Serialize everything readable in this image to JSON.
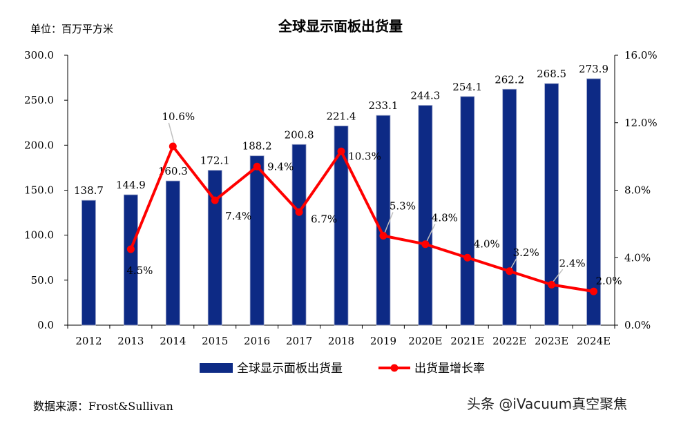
{
  "header": {
    "unit": "单位：百万平方米",
    "source": "数据来源：Frost&Sullivan",
    "watermark": "头条 @iVacuum真空聚焦"
  },
  "colors": {
    "bar": "#0d2a85",
    "line": "#ff0000",
    "axis": "#000000"
  },
  "chart_data": {
    "type": "bar",
    "title": "全球显示面板出货量",
    "categories": [
      "2012",
      "2013",
      "2014",
      "2015",
      "2016",
      "2017",
      "2018",
      "2019",
      "2020E",
      "2021E",
      "2022E",
      "2023E",
      "2024E"
    ],
    "series": [
      {
        "name": "全球显示面板出货量",
        "type": "bar",
        "axis": "left",
        "values": [
          138.7,
          144.9,
          160.3,
          172.1,
          188.2,
          200.8,
          221.4,
          233.1,
          244.3,
          254.1,
          262.2,
          268.5,
          273.9
        ],
        "labels": [
          "138.7",
          "144.9",
          "160.3",
          "172.1",
          "188.2",
          "200.8",
          "221.4",
          "233.1",
          "244.3",
          "254.1",
          "262.2",
          "268.5",
          "273.9"
        ]
      },
      {
        "name": "出货量增长率",
        "type": "line",
        "axis": "right",
        "values": [
          null,
          4.5,
          10.6,
          7.4,
          9.4,
          6.7,
          10.3,
          5.3,
          4.8,
          4.0,
          3.2,
          2.4,
          2.0
        ],
        "labels": [
          "",
          "4.5%",
          "10.6%",
          "7.4%",
          "9.4%",
          "6.7%",
          "10.3%",
          "5.3%",
          "4.8%",
          "4.0%",
          "3.2%",
          "2.4%",
          "2.0%"
        ]
      }
    ],
    "ylim_left": [
      0,
      300
    ],
    "yticks_left": [
      "0.0",
      "50.0",
      "100.0",
      "150.0",
      "200.0",
      "250.0",
      "300.0"
    ],
    "ylim_right": [
      0,
      16
    ],
    "yticks_right": [
      "0.0%",
      "4.0%",
      "8.0%",
      "12.0%",
      "16.0%"
    ],
    "legend": [
      "全球显示面板出货量",
      "出货量增长率"
    ]
  }
}
